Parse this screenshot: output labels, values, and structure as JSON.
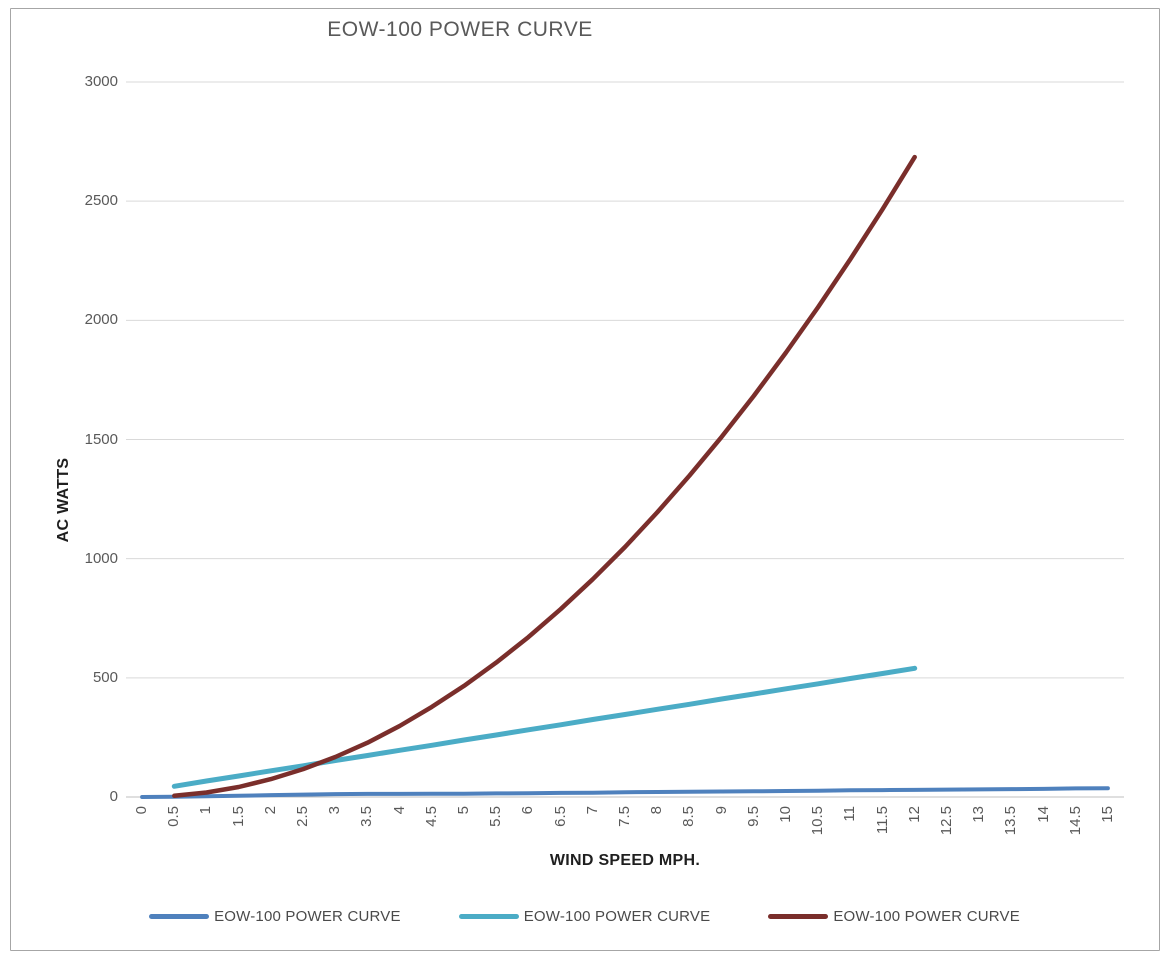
{
  "chart": {
    "title": "EOW-100 POWER CURVE",
    "x_axis_title": "WIND SPEED MPH.",
    "y_axis_title": "AC WATTS"
  },
  "styles": {
    "text_color": "#595959",
    "axis_title_color": "#1f1f1f",
    "gridline_color": "#d9d9d9",
    "axis_line_color": "#bfbfbf",
    "frame_border_color": "#a6a6a6",
    "series_blue": "#4F81BD",
    "series_teal": "#4BACC6",
    "series_dark_red": "#7A2E2B"
  },
  "chart_data": {
    "type": "line",
    "title": "EOW-100 POWER CURVE",
    "xlabel": "WIND SPEED MPH.",
    "ylabel": "AC WATTS",
    "xlim": [
      0,
      15
    ],
    "ylim": [
      0,
      3000
    ],
    "x_tick_step": 0.5,
    "x_tick_labels": [
      "0",
      "0.5",
      "1",
      "1.5",
      "2",
      "2.5",
      "3",
      "3.5",
      "4",
      "4.5",
      "5",
      "5.5",
      "6",
      "6.5",
      "7",
      "7.5",
      "8",
      "8.5",
      "9",
      "9.5",
      "10",
      "10.5",
      "11",
      "11.5",
      "12",
      "12.5",
      "13",
      "13.5",
      "14",
      "14.5",
      "15"
    ],
    "y_ticks": [
      0,
      500,
      1000,
      1500,
      2000,
      2500,
      3000
    ],
    "y_tick_labels": [
      "0",
      "500",
      "1000",
      "1500",
      "2000",
      "2500",
      "3000"
    ],
    "grid": "horizontal-major",
    "legend_position": "bottom",
    "series": [
      {
        "name": "EOW-100 POWER CURVE",
        "color": "#4F81BD",
        "stroke_width": 4,
        "x": [
          0,
          0.5,
          1,
          1.5,
          2,
          2.5,
          3,
          3.5,
          4,
          4.5,
          5,
          5.5,
          6,
          6.5,
          7,
          7.5,
          8,
          8.5,
          9,
          9.5,
          10,
          10.5,
          11,
          11.5,
          12,
          12.5,
          13,
          13.5,
          14,
          14.5,
          15
        ],
        "values": [
          0,
          1,
          3,
          5,
          8,
          10,
          12,
          13,
          13,
          14,
          14,
          15,
          16,
          17,
          18,
          20,
          21,
          22,
          23,
          24,
          25,
          26,
          28,
          29,
          30,
          31,
          32,
          33,
          34,
          36,
          37
        ]
      },
      {
        "name": "EOW-100 POWER CURVE",
        "color": "#4BACC6",
        "stroke_width": 5,
        "x": [
          0.5,
          1,
          1.5,
          2,
          2.5,
          3,
          3.5,
          4,
          4.5,
          5,
          5.5,
          6,
          6.5,
          7,
          7.5,
          8,
          8.5,
          9,
          9.5,
          10,
          10.5,
          11,
          11.5,
          12
        ],
        "values": [
          45,
          67,
          88,
          110,
          131,
          153,
          174,
          196,
          217,
          239,
          260,
          282,
          303,
          325,
          346,
          368,
          389,
          411,
          432,
          454,
          475,
          497,
          518,
          540
        ]
      },
      {
        "name": "EOW-100 POWER CURVE",
        "color": "#7A2E2B",
        "stroke_width": 4.5,
        "x": [
          0.5,
          1,
          1.5,
          2,
          2.5,
          3,
          3.5,
          4,
          4.5,
          5,
          5.5,
          6,
          6.5,
          7,
          7.5,
          8,
          8.5,
          9,
          9.5,
          10,
          10.5,
          11,
          11.5,
          12
        ],
        "values": [
          5,
          19,
          42,
          75,
          117,
          168,
          228,
          298,
          378,
          466,
          564,
          671,
          788,
          914,
          1049,
          1194,
          1348,
          1511,
          1683,
          1865,
          2056,
          2257,
          2466,
          2685
        ]
      }
    ]
  }
}
